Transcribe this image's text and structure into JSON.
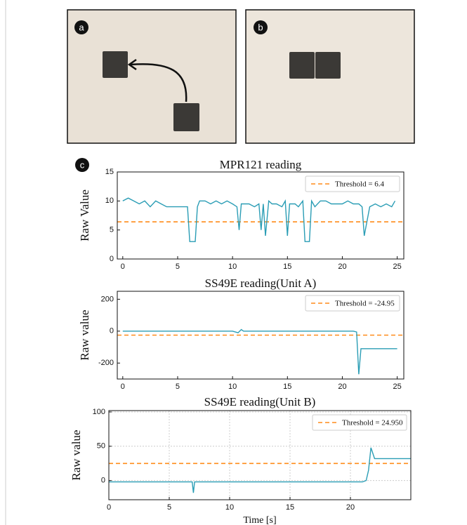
{
  "panels": [
    {
      "label": "a"
    },
    {
      "label": "b"
    },
    {
      "label": "c"
    }
  ],
  "chart_data": [
    {
      "type": "line",
      "title": "MPR121 reading",
      "y_label": "Raw Value",
      "xlim": [
        -0.5,
        25.6
      ],
      "xticks": [
        0,
        5,
        10,
        15,
        20,
        25
      ],
      "ylim": [
        0,
        15
      ],
      "yticks": [
        0,
        5,
        10,
        15
      ],
      "grid": false,
      "legend": "upper right",
      "threshold": {
        "name": "Threshold = 6.4",
        "value": 6.4,
        "color": "#ff8c1a"
      },
      "series": [
        {
          "color": "#2a9db5",
          "x": [
            0,
            0.5,
            1,
            1.5,
            2,
            2.5,
            3,
            3.5,
            4,
            4.5,
            5,
            5.5,
            5.9,
            6.1,
            6.6,
            6.8,
            7,
            7.5,
            8,
            8.5,
            9,
            9.5,
            10,
            10.4,
            10.6,
            10.8,
            11.5,
            12,
            12.4,
            12.6,
            12.8,
            13,
            13.3,
            13.6,
            14,
            14.5,
            14.8,
            15,
            15.2,
            15.7,
            16,
            16.4,
            16.6,
            17,
            17.2,
            17.5,
            18,
            18.5,
            19,
            19.5,
            20,
            20.5,
            21,
            21.5,
            21.8,
            22,
            22.5,
            23,
            23.5,
            24,
            24.5,
            24.8
          ],
          "values": [
            10,
            10.5,
            10,
            9.5,
            10,
            9,
            10,
            9.5,
            9,
            9,
            9,
            9,
            9,
            3,
            3,
            9,
            10,
            10,
            9.5,
            10,
            9.5,
            10,
            9.5,
            9,
            5,
            9.5,
            9.5,
            9,
            9.5,
            5,
            9.5,
            4,
            10,
            9.5,
            9.5,
            9,
            10,
            4,
            9.5,
            9.5,
            9,
            10,
            3,
            3,
            10,
            9,
            10,
            10,
            9.5,
            9.5,
            9.5,
            10,
            9.5,
            9.5,
            9,
            4,
            9,
            9.5,
            9,
            9.5,
            9,
            10
          ]
        }
      ]
    },
    {
      "type": "line",
      "title": "SS49E reading(Unit A)",
      "y_label": "Raw value",
      "xlim": [
        -0.5,
        25.6
      ],
      "xticks": [
        0,
        5,
        10,
        15,
        20,
        25
      ],
      "ylim": [
        -300,
        250
      ],
      "yticks": [
        -200,
        0,
        200
      ],
      "grid": false,
      "legend": "upper right",
      "threshold": {
        "name": "Threshold = -24.95",
        "value": -24.95,
        "color": "#ff8c1a"
      },
      "series": [
        {
          "color": "#2a9db5",
          "x": [
            0,
            1,
            2,
            3,
            4,
            5,
            6,
            7,
            8,
            9,
            10,
            10.5,
            10.8,
            11,
            12,
            13,
            14,
            15,
            16,
            17,
            18,
            19,
            20,
            21,
            21.3,
            21.5,
            21.7,
            22,
            23,
            24,
            25
          ],
          "values": [
            0,
            0,
            0,
            0,
            0,
            0,
            0,
            0,
            0,
            0,
            0,
            -10,
            10,
            0,
            0,
            0,
            0,
            0,
            0,
            0,
            0,
            0,
            0,
            0,
            -5,
            -270,
            -110,
            -110,
            -110,
            -110,
            -110
          ]
        }
      ]
    },
    {
      "type": "line",
      "title": "SS49E reading(Unit B)",
      "y_label": "Raw value",
      "x_label": "Time [s]",
      "xlim": [
        0,
        25
      ],
      "xticks": [
        0,
        5,
        10,
        15,
        20
      ],
      "ylim": [
        -28,
        102
      ],
      "yticks": [
        0,
        50,
        100
      ],
      "grid": true,
      "legend": "upper right",
      "threshold": {
        "name": "Threshold = 24.950",
        "value": 24.95,
        "color": "#ff8c1a"
      },
      "series": [
        {
          "color": "#2a9db5",
          "x": [
            0,
            2,
            4,
            6,
            6.9,
            7,
            7.1,
            8,
            10,
            12,
            14,
            16,
            18,
            20,
            21,
            21.3,
            21.5,
            21.7,
            22,
            23,
            24,
            25
          ],
          "values": [
            -2,
            -2,
            -2,
            -2,
            -2,
            -18,
            -2,
            -2,
            -2,
            -2,
            -2,
            -2,
            -2,
            -2,
            -2,
            0,
            15,
            48,
            32,
            32,
            32,
            32
          ]
        }
      ]
    }
  ]
}
